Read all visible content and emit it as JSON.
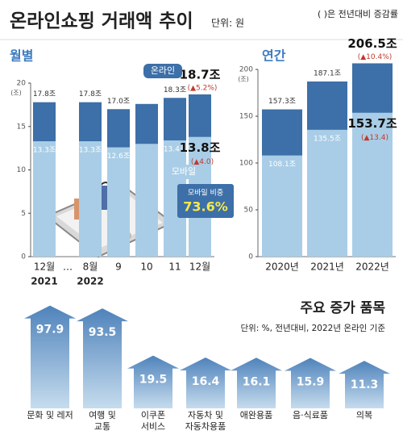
{
  "header": {
    "title": "온라인쇼핑 거래액 추이",
    "unit": "단위: 원",
    "legend_note": "( )은 전년대비 증감률"
  },
  "chart_data": [
    {
      "type": "bar",
      "title": "월별",
      "categories": [
        "12월",
        "8월",
        "9",
        "10",
        "11",
        "12월"
      ],
      "sub_labels": [
        "2021",
        "2022",
        null,
        null,
        null,
        null
      ],
      "gap_label": "…",
      "series": [
        {
          "name": "온라인",
          "color": "#3d6fa8",
          "values": [
            17.8,
            17.8,
            17.0,
            17.6,
            18.3,
            18.7
          ],
          "value_labels": [
            "17.8조",
            "17.8조",
            "17.0조",
            null,
            "18.3조",
            "18.7조"
          ],
          "change_labels": [
            null,
            null,
            null,
            null,
            null,
            "(▲5.2%)"
          ]
        },
        {
          "name": "모바일",
          "color": "#a9cde6",
          "values": [
            13.3,
            13.3,
            12.6,
            13.0,
            13.4,
            13.8
          ],
          "value_labels": [
            "13.3조",
            "13.3조",
            "12.6조",
            null,
            "13.4조",
            "13.8조"
          ],
          "change_labels": [
            null,
            null,
            null,
            null,
            null,
            "(▲4.0)"
          ]
        }
      ],
      "ylim": [
        0,
        20
      ],
      "yticks": [
        0,
        5,
        10,
        15,
        20
      ],
      "y_unit": "(조)",
      "annotation": {
        "title": "모바일 비중",
        "value": "73.6%"
      }
    },
    {
      "type": "bar",
      "title": "연간",
      "categories": [
        "2020년",
        "2021년",
        "2022년"
      ],
      "series": [
        {
          "name": "온라인",
          "color": "#3d6fa8",
          "values": [
            157.3,
            187.1,
            206.5
          ],
          "value_labels": [
            "157.3조",
            "187.1조",
            "206.5조"
          ],
          "change_labels": [
            null,
            null,
            "(▲10.4%)"
          ]
        },
        {
          "name": "모바일",
          "color": "#a9cde6",
          "values": [
            108.1,
            135.5,
            153.7
          ],
          "value_labels": [
            "108.1조",
            "135.5조",
            "153.7조"
          ],
          "change_labels": [
            null,
            null,
            "(▲13.4)"
          ]
        }
      ],
      "ylim": [
        0,
        200
      ],
      "yticks": [
        0,
        50,
        100,
        150,
        200
      ],
      "y_unit": "(조)"
    },
    {
      "type": "arrow_bar",
      "title": "주요 증가 품목",
      "note": "단위: %, 전년대비, 2022년 온라인 기준",
      "categories": [
        [
          "문화 및 레저"
        ],
        [
          "여행 및",
          "교통"
        ],
        [
          "이쿠폰",
          "서비스"
        ],
        [
          "자동차 및",
          "자동차용품"
        ],
        [
          "애완용품"
        ],
        [
          "음·식료품"
        ],
        [
          "의복"
        ]
      ],
      "values": [
        97.9,
        93.5,
        19.5,
        16.4,
        16.1,
        15.9,
        11.3
      ]
    }
  ]
}
